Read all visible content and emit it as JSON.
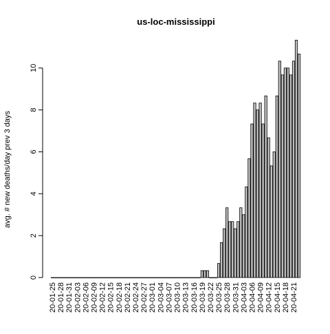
{
  "chart_data": {
    "type": "bar",
    "title": "us-loc-mississippi",
    "ylabel": "avg. # new deaths/day prev  3  days",
    "categories": [
      "20-01-25",
      null,
      null,
      "20-01-28",
      null,
      null,
      "20-01-31",
      null,
      null,
      "20-02-03",
      null,
      null,
      "20-02-06",
      null,
      null,
      "20-02-09",
      null,
      null,
      "20-02-12",
      null,
      null,
      "20-02-15",
      null,
      null,
      "20-02-18",
      null,
      null,
      "20-02-21",
      null,
      null,
      "20-02-24",
      null,
      null,
      "20-02-27",
      null,
      null,
      "20-03-01",
      null,
      null,
      "20-03-04",
      null,
      null,
      "20-03-07",
      null,
      null,
      "20-03-10",
      null,
      null,
      "20-03-13",
      null,
      null,
      "20-03-16",
      null,
      null,
      "20-03-19",
      null,
      null,
      "20-03-22",
      null,
      null,
      "20-03-25",
      null,
      null,
      "20-03-28",
      null,
      null,
      "20-03-31",
      null,
      null,
      "20-04-03",
      null,
      null,
      "20-04-06",
      null,
      null,
      "20-04-09",
      null,
      null,
      "20-04-12",
      null,
      null,
      "20-04-15",
      null,
      null,
      "20-04-18",
      null,
      null,
      "20-04-21",
      null,
      null
    ],
    "values": [
      0,
      0,
      0,
      0,
      0,
      0,
      0,
      0,
      0,
      0,
      0,
      0,
      0,
      0,
      0,
      0,
      0,
      0,
      0,
      0,
      0,
      0,
      0,
      0,
      0,
      0,
      0,
      0,
      0,
      0,
      0,
      0,
      0,
      0,
      0,
      0,
      0,
      0,
      0,
      0,
      0,
      0,
      0,
      0,
      0,
      0,
      0,
      0,
      0,
      0,
      0,
      0,
      0,
      0,
      0.33,
      0.33,
      0.33,
      0,
      0,
      0,
      0.67,
      1.67,
      2.33,
      3.33,
      2.67,
      2.67,
      2.33,
      2.67,
      3.33,
      3.0,
      4.33,
      5.67,
      7.33,
      8.33,
      8.0,
      8.33,
      7.33,
      8.67,
      6.67,
      5.33,
      6.0,
      8.67,
      10.33,
      9.67,
      10.0,
      10.0,
      9.67,
      10.33,
      11.33,
      10.67
    ],
    "color": "#bebebe",
    "ylim": [
      0,
      11.8
    ],
    "yticks": [
      0,
      2,
      4,
      6,
      8,
      10
    ]
  }
}
